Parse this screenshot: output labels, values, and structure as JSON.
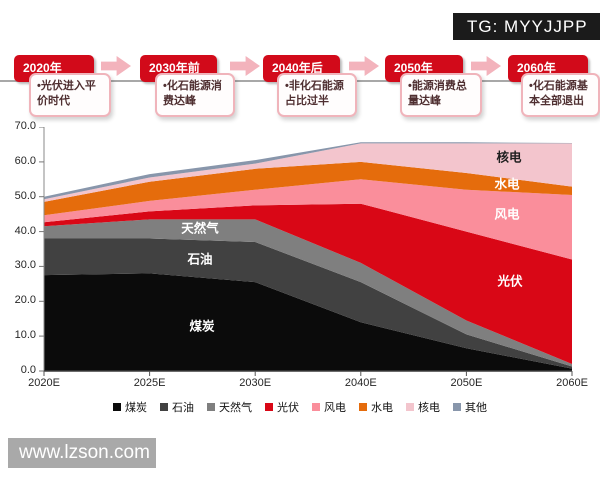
{
  "header": {
    "tg_label": "TG: MYYJJPP"
  },
  "timeline": {
    "stages": [
      {
        "year": "2020年",
        "note": "•光伏进入平价时代"
      },
      {
        "year": "2030年前",
        "note": "•化石能源消费达峰"
      },
      {
        "year": "2040年后",
        "note": "•非化石能源占比过半"
      },
      {
        "year": "2050年",
        "note": "•能源消费总量达峰"
      },
      {
        "year": "2060年",
        "note": "•化石能源基本全部退出"
      }
    ]
  },
  "chart_data": {
    "type": "area",
    "stacked": true,
    "title": "",
    "xlabel": "",
    "ylabel": "",
    "categories": [
      "2020E",
      "2025E",
      "2030E",
      "2040E",
      "2050E",
      "2060E"
    ],
    "series": [
      {
        "name": "煤炭",
        "color": "#0b0b0b",
        "values": [
          27.5,
          28.0,
          25.5,
          14.0,
          6.5,
          0.7
        ]
      },
      {
        "name": "石油",
        "color": "#414141",
        "values": [
          10.5,
          10.0,
          11.5,
          11.5,
          4.0,
          0.6
        ]
      },
      {
        "name": "天然气",
        "color": "#7f7f7f",
        "values": [
          3.5,
          5.5,
          6.5,
          5.5,
          4.0,
          0.7
        ]
      },
      {
        "name": "光伏",
        "color": "#d90716",
        "values": [
          1.2,
          2.3,
          4.0,
          17.0,
          25.5,
          30.0
        ]
      },
      {
        "name": "风电",
        "color": "#fa8e9b",
        "values": [
          2.0,
          3.0,
          4.5,
          7.0,
          12.0,
          18.5
        ]
      },
      {
        "name": "水电",
        "color": "#e56c0c",
        "values": [
          3.8,
          5.5,
          6.0,
          5.0,
          4.8,
          2.4
        ]
      },
      {
        "name": "核电",
        "color": "#f3c5cd",
        "values": [
          0.8,
          1.2,
          1.5,
          5.3,
          8.5,
          12.4
        ]
      },
      {
        "name": "其他",
        "color": "#8896ab",
        "values": [
          0.7,
          1.0,
          1.0,
          0.3,
          0.3,
          0.1
        ]
      }
    ],
    "ylim": [
      0,
      70
    ],
    "yticks": [
      "70.0",
      "60.0",
      "50.0",
      "40.0",
      "30.0",
      "20.0",
      "10.0",
      "0.0"
    ],
    "grid": false,
    "legend_position": "bottom",
    "area_labels": [
      {
        "text": "天然气",
        "color": "#ffffff"
      },
      {
        "text": "石油",
        "color": "#ffffff"
      },
      {
        "text": "煤炭",
        "color": "#ffffff"
      },
      {
        "text": "核电",
        "color": "#1f1f1f"
      },
      {
        "text": "水电",
        "color": "#ffffff"
      },
      {
        "text": "风电",
        "color": "#ffffff"
      },
      {
        "text": "光伏",
        "color": "#ffffff"
      }
    ]
  },
  "watermark": {
    "url_text": "www.lzson.com"
  }
}
